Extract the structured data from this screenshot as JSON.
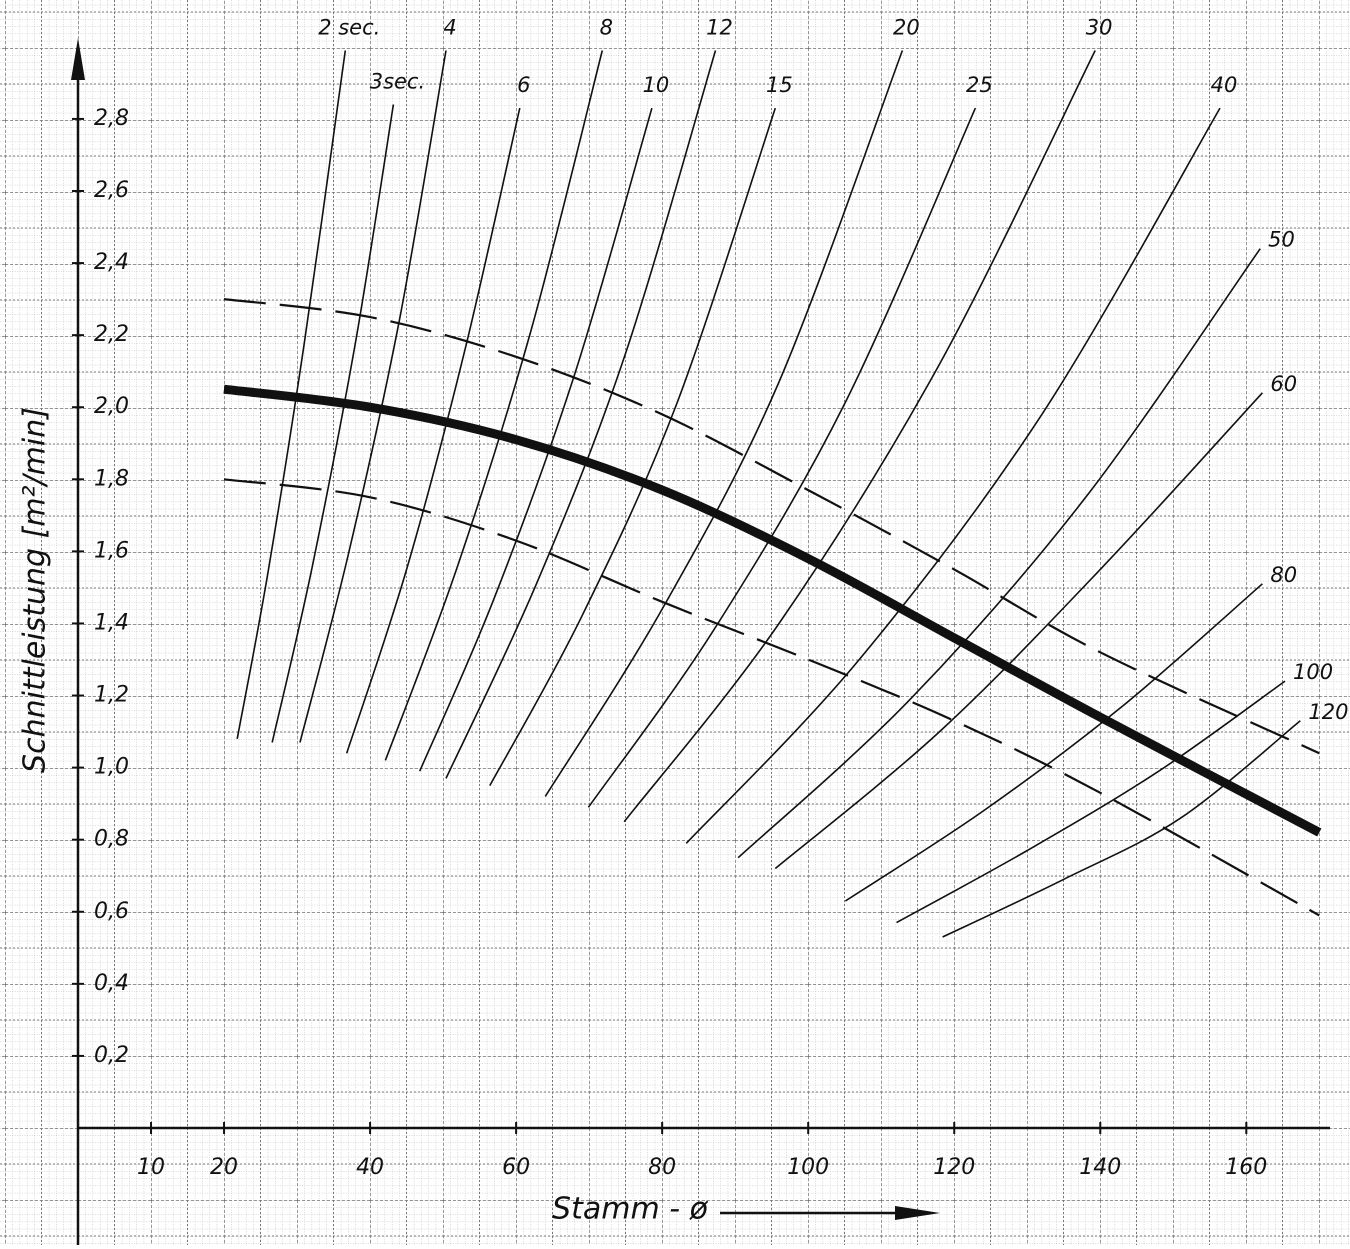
{
  "chart_data": {
    "type": "line",
    "x_label": "Stamm - ø",
    "y_label": "Schnittleistung   [m²/min]",
    "xlim": [
      0,
      174.2
    ],
    "ylim": [
      0,
      3.13
    ],
    "xticks": [
      10,
      20,
      40,
      60,
      80,
      100,
      120,
      140,
      160
    ],
    "yticks": [
      {
        "value": 0.2,
        "label": "0,2"
      },
      {
        "value": 0.4,
        "label": "0,4"
      },
      {
        "value": 0.6,
        "label": "0,6"
      },
      {
        "value": 0.8,
        "label": "0,8"
      },
      {
        "value": 1.0,
        "label": "1,0"
      },
      {
        "value": 1.2,
        "label": "1,2"
      },
      {
        "value": 1.4,
        "label": "1,4"
      },
      {
        "value": 1.6,
        "label": "1,6"
      },
      {
        "value": 1.8,
        "label": "1,8"
      },
      {
        "value": 2.0,
        "label": "2,0"
      },
      {
        "value": 2.2,
        "label": "2,2"
      },
      {
        "value": 2.4,
        "label": "2,4"
      },
      {
        "value": 2.6,
        "label": "2,6"
      },
      {
        "value": 2.8,
        "label": "2,8"
      }
    ],
    "color": "#111111",
    "series": [
      {
        "name": "2 sec.",
        "x": [
          21.8,
          26,
          31,
          36.6
        ],
        "values": [
          1.08,
          1.54,
          2.18,
          2.99
        ]
      },
      {
        "name": "3sec.",
        "x": [
          26.6,
          32,
          38,
          43.2
        ],
        "values": [
          1.07,
          1.55,
          2.18,
          2.84
        ]
      },
      {
        "name": "4",
        "x": [
          30.4,
          37,
          44,
          50.4
        ],
        "values": [
          1.07,
          1.59,
          2.24,
          2.99
        ]
      },
      {
        "name": "6",
        "x": [
          36.8,
          45,
          53,
          60.5
        ],
        "values": [
          1.04,
          1.55,
          2.16,
          2.83
        ]
      },
      {
        "name": "8",
        "x": [
          42.1,
          52,
          62,
          71.8
        ],
        "values": [
          1.02,
          1.56,
          2.21,
          2.99
        ]
      },
      {
        "name": "10",
        "x": [
          46.8,
          57,
          68,
          78.6
        ],
        "values": [
          0.99,
          1.47,
          2.09,
          2.83
        ]
      },
      {
        "name": "12",
        "x": [
          50.4,
          63,
          75,
          87.3
        ],
        "values": [
          0.97,
          1.52,
          2.15,
          2.99
        ]
      },
      {
        "name": "15",
        "x": [
          56.4,
          69,
          82,
          95.5
        ],
        "values": [
          0.95,
          1.42,
          2.01,
          2.83
        ]
      },
      {
        "name": "20",
        "x": [
          64,
          80,
          96,
          112.9
        ],
        "values": [
          0.92,
          1.44,
          2.07,
          2.99
        ]
      },
      {
        "name": "25",
        "x": [
          69.9,
          87,
          105,
          122.9
        ],
        "values": [
          0.89,
          1.38,
          2.01,
          2.83
        ]
      },
      {
        "name": "30",
        "x": [
          74.8,
          96,
          118,
          139.3
        ],
        "values": [
          0.85,
          1.4,
          2.12,
          2.99
        ]
      },
      {
        "name": "40",
        "x": [
          83.3,
          107,
          132,
          156.4
        ],
        "values": [
          0.79,
          1.3,
          1.98,
          2.83
        ]
      },
      {
        "name": "50",
        "x": [
          90.4,
          114,
          138,
          161.9
        ],
        "values": [
          0.75,
          1.19,
          1.75,
          2.44
        ]
      },
      {
        "name": "60",
        "x": [
          95.5,
          118,
          140,
          162.2
        ],
        "values": [
          0.72,
          1.1,
          1.55,
          2.04
        ]
      },
      {
        "name": "80",
        "x": [
          105.1,
          124,
          143,
          162.2
        ],
        "values": [
          0.63,
          0.88,
          1.17,
          1.51
        ]
      },
      {
        "name": "100",
        "x": [
          112.1,
          130,
          148,
          165.3
        ],
        "values": [
          0.57,
          0.77,
          0.99,
          1.24
        ]
      },
      {
        "name": "120",
        "x": [
          118.4,
          135,
          151,
          167.4
        ],
        "values": [
          0.53,
          0.69,
          0.86,
          1.13
        ]
      }
    ],
    "bands": [
      {
        "style": "dashed",
        "x": [
          20,
          40,
          60,
          80,
          100,
          120,
          140,
          170
        ],
        "values": [
          2.3,
          2.25,
          2.14,
          1.98,
          1.77,
          1.55,
          1.32,
          1.04
        ]
      },
      {
        "style": "thick",
        "x": [
          20,
          40,
          60,
          80,
          100,
          120,
          140,
          170
        ],
        "values": [
          2.05,
          2.0,
          1.91,
          1.77,
          1.58,
          1.36,
          1.14,
          0.82
        ]
      },
      {
        "style": "dashed",
        "x": [
          20,
          40,
          60,
          80,
          100,
          120,
          140,
          170
        ],
        "values": [
          1.8,
          1.75,
          1.63,
          1.46,
          1.3,
          1.13,
          0.93,
          0.59
        ]
      }
    ]
  }
}
